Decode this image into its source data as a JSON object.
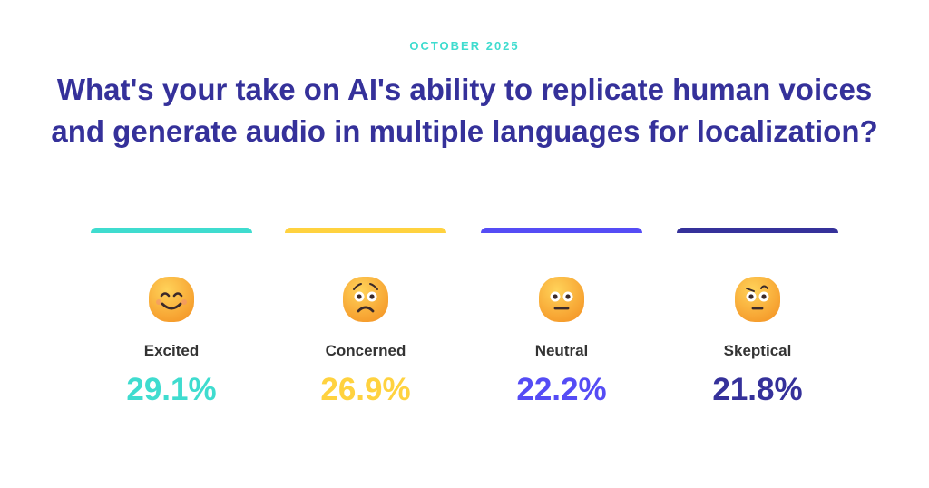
{
  "header": {
    "date": "OCTOBER 2025",
    "title_line1": "What's your take on AI's ability to replicate human voices",
    "title_line2": "and generate audio in multiple languages for localization?"
  },
  "chart_data": {
    "type": "bar",
    "title": "What's your take on AI's ability to replicate human voices and generate audio in multiple languages for localization?",
    "categories": [
      "Excited",
      "Concerned",
      "Neutral",
      "Skeptical"
    ],
    "values": [
      29.1,
      26.9,
      22.2,
      21.8
    ],
    "labels": [
      "29.1%",
      "26.9%",
      "22.2%",
      "21.8%"
    ],
    "colors": [
      "#3fdccf",
      "#ffd23f",
      "#554cf5",
      "#35319a"
    ],
    "icons": [
      "smiling-face-icon",
      "worried-face-icon",
      "neutral-face-icon",
      "skeptical-face-icon"
    ]
  }
}
